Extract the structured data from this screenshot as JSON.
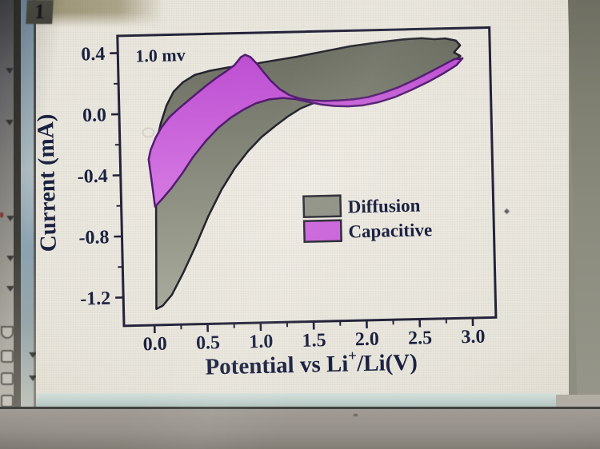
{
  "app": {
    "page_tab_label": "1",
    "left_toolbar_icons": [
      "dropdown-arrow-icon",
      "dropdown-arrow-icon",
      "dropdown-arrow-icon",
      "dropdown-arrow-icon",
      "dropdown-arrow-icon",
      "tool-button-icon",
      "tool-button-icon",
      "tool-button-icon",
      "tool-button-icon",
      "swatch-icon"
    ]
  },
  "chart_data": {
    "type": "area",
    "annotation": "1.0 mv",
    "ylabel": "Current (mA)",
    "xlabel_parts": {
      "pre": "Potential vs Li",
      "sup": "+",
      "post": "/Li(V)"
    },
    "xlim": [
      -0.29,
      3.22
    ],
    "ylim": [
      -1.39,
      0.52
    ],
    "grid": false,
    "legend_position": "center-right",
    "xticks": {
      "values": [
        0,
        0.5,
        1.0,
        1.5,
        2.0,
        2.5,
        3.0
      ],
      "labels": [
        "0.0",
        "0.5",
        "1.0",
        "1.5",
        "2.0",
        "2.5",
        "3.0"
      ],
      "minor": [
        0.25,
        0.75,
        1.25,
        1.75,
        2.25,
        2.75
      ]
    },
    "yticks": {
      "values": [
        0.4,
        0.0,
        -0.4,
        -0.8,
        -1.2
      ],
      "labels": [
        "0.4",
        "0.0",
        "-0.4",
        "-0.8",
        "-1.2"
      ],
      "minor": [
        0.2,
        -0.2,
        -0.6,
        -1.0
      ]
    },
    "series": [
      {
        "name": "Diffusion",
        "legend_fill": "#8e9183",
        "fill_top": "#6a6d60",
        "fill_bottom": "#a8aa9b",
        "stroke": "#24242e",
        "points": [
          [
            0.02,
            -1.28
          ],
          [
            0.03,
            -0.95
          ],
          [
            0.04,
            -0.6
          ],
          [
            0.05,
            -0.3
          ],
          [
            0.06,
            -0.18
          ],
          [
            0.1,
            -0.07
          ],
          [
            0.16,
            0.05
          ],
          [
            0.23,
            0.14
          ],
          [
            0.32,
            0.2
          ],
          [
            0.43,
            0.245
          ],
          [
            0.57,
            0.27
          ],
          [
            0.75,
            0.29
          ],
          [
            0.95,
            0.305
          ],
          [
            1.15,
            0.325
          ],
          [
            1.4,
            0.35
          ],
          [
            1.65,
            0.38
          ],
          [
            1.9,
            0.41
          ],
          [
            2.15,
            0.43
          ],
          [
            2.4,
            0.447
          ],
          [
            2.58,
            0.452
          ],
          [
            2.7,
            0.444
          ],
          [
            2.8,
            0.447
          ],
          [
            2.9,
            0.432
          ],
          [
            2.94,
            0.4
          ],
          [
            2.88,
            0.355
          ],
          [
            2.94,
            0.33
          ],
          [
            2.86,
            0.29
          ],
          [
            2.7,
            0.235
          ],
          [
            2.52,
            0.175
          ],
          [
            2.33,
            0.12
          ],
          [
            2.15,
            0.085
          ],
          [
            1.98,
            0.065
          ],
          [
            1.82,
            0.058
          ],
          [
            1.68,
            0.056
          ],
          [
            1.55,
            0.045
          ],
          [
            1.42,
            0.01
          ],
          [
            1.3,
            -0.04
          ],
          [
            1.18,
            -0.1
          ],
          [
            1.05,
            -0.17
          ],
          [
            0.92,
            -0.26
          ],
          [
            0.79,
            -0.37
          ],
          [
            0.66,
            -0.51
          ],
          [
            0.53,
            -0.68
          ],
          [
            0.4,
            -0.88
          ],
          [
            0.28,
            -1.05
          ],
          [
            0.17,
            -1.19
          ],
          [
            0.08,
            -1.26
          ]
        ]
      },
      {
        "name": "Capacitive",
        "legend_fill": "#ca64da",
        "fill_top": "#bd4fd2",
        "fill_bottom": "#d67ae2",
        "stroke": "#521d70",
        "points": [
          [
            0.03,
            -0.61
          ],
          [
            0.0,
            -0.42
          ],
          [
            -0.02,
            -0.3
          ],
          [
            0.0,
            -0.24
          ],
          [
            0.05,
            -0.16
          ],
          [
            0.11,
            -0.09
          ],
          [
            0.18,
            -0.03
          ],
          [
            0.26,
            0.02
          ],
          [
            0.34,
            0.065
          ],
          [
            0.44,
            0.12
          ],
          [
            0.54,
            0.175
          ],
          [
            0.64,
            0.225
          ],
          [
            0.73,
            0.265
          ],
          [
            0.81,
            0.305
          ],
          [
            0.87,
            0.355
          ],
          [
            0.91,
            0.37
          ],
          [
            0.96,
            0.355
          ],
          [
            1.02,
            0.31
          ],
          [
            1.08,
            0.255
          ],
          [
            1.15,
            0.195
          ],
          [
            1.23,
            0.14
          ],
          [
            1.32,
            0.1
          ],
          [
            1.42,
            0.075
          ],
          [
            1.53,
            0.062
          ],
          [
            1.65,
            0.056
          ],
          [
            1.78,
            0.057
          ],
          [
            1.92,
            0.062
          ],
          [
            2.06,
            0.075
          ],
          [
            2.2,
            0.1
          ],
          [
            2.35,
            0.135
          ],
          [
            2.5,
            0.18
          ],
          [
            2.65,
            0.23
          ],
          [
            2.78,
            0.275
          ],
          [
            2.88,
            0.31
          ],
          [
            2.96,
            0.315
          ],
          [
            2.9,
            0.27
          ],
          [
            2.78,
            0.22
          ],
          [
            2.63,
            0.165
          ],
          [
            2.47,
            0.115
          ],
          [
            2.31,
            0.07
          ],
          [
            2.16,
            0.04
          ],
          [
            2.01,
            0.022
          ],
          [
            1.87,
            0.017
          ],
          [
            1.74,
            0.022
          ],
          [
            1.62,
            0.033
          ],
          [
            1.5,
            0.052
          ],
          [
            1.38,
            0.072
          ],
          [
            1.26,
            0.082
          ],
          [
            1.13,
            0.075
          ],
          [
            1.0,
            0.05
          ],
          [
            0.88,
            0.01
          ],
          [
            0.76,
            -0.04
          ],
          [
            0.64,
            -0.105
          ],
          [
            0.52,
            -0.19
          ],
          [
            0.4,
            -0.29
          ],
          [
            0.29,
            -0.4
          ],
          [
            0.19,
            -0.49
          ],
          [
            0.1,
            -0.56
          ]
        ]
      }
    ]
  }
}
